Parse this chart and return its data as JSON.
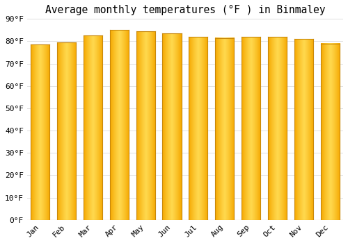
{
  "title": "Average monthly temperatures (°F ) in Binmaley",
  "categories": [
    "Jan",
    "Feb",
    "Mar",
    "Apr",
    "May",
    "Jun",
    "Jul",
    "Aug",
    "Sep",
    "Oct",
    "Nov",
    "Dec"
  ],
  "values": [
    78.5,
    79.5,
    82.5,
    85.0,
    84.5,
    83.5,
    82.0,
    81.5,
    82.0,
    82.0,
    81.0,
    79.0
  ],
  "ylim": [
    0,
    90
  ],
  "yticks": [
    0,
    10,
    20,
    30,
    40,
    50,
    60,
    70,
    80,
    90
  ],
  "ytick_labels": [
    "0°F",
    "10°F",
    "20°F",
    "30°F",
    "40°F",
    "50°F",
    "60°F",
    "70°F",
    "80°F",
    "90°F"
  ],
  "background_color": "#ffffff",
  "grid_color": "#e0e0e0",
  "title_fontsize": 10.5,
  "tick_fontsize": 8,
  "bar_color_dark": "#F5A800",
  "bar_color_light": "#FFD84D",
  "bar_edge_color": "#C8880A",
  "bar_width": 0.72
}
